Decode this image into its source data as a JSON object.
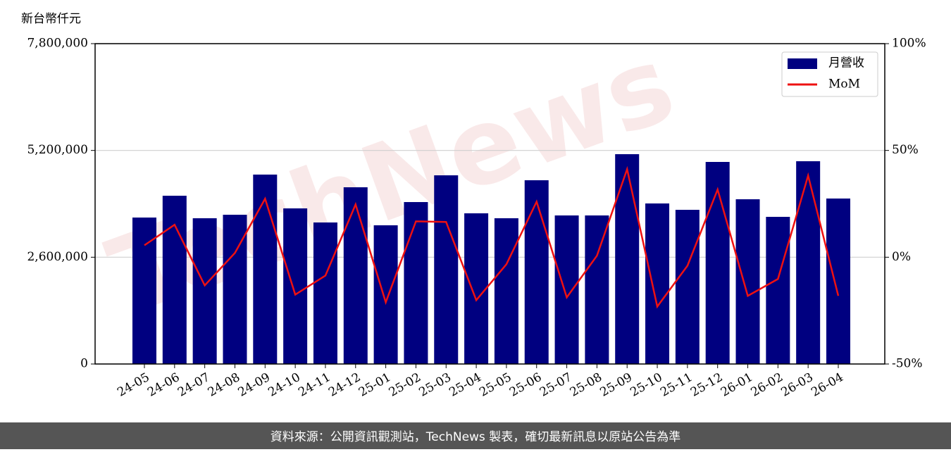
{
  "chart_data": {
    "type": "bar_line",
    "y_label": "新台幣仟元",
    "watermark": "TechNews",
    "footer": "資料來源：公開資訊觀測站，TechNews 製表，確切最新訊息以原站公告為準",
    "categories": [
      "24-05",
      "24-06",
      "24-07",
      "24-08",
      "24-09",
      "24-10",
      "24-11",
      "24-12",
      "25-01",
      "25-02",
      "25-03",
      "25-04",
      "25-05",
      "25-06",
      "25-07",
      "25-08",
      "25-09",
      "25-10",
      "25-11",
      "25-12",
      "26-01",
      "26-02",
      "26-03",
      "26-04"
    ],
    "series": [
      {
        "name": "月營收",
        "type": "bar",
        "color": "#000080",
        "values": [
          3566000,
          4097000,
          3549000,
          3634000,
          4612000,
          3789000,
          3446000,
          4303000,
          3377000,
          3943000,
          4594000,
          3669000,
          3549000,
          4474000,
          3617000,
          3617000,
          5109000,
          3909000,
          3754000,
          4920000,
          4011000,
          3583000,
          4937000,
          4029000
        ]
      },
      {
        "name": "MoM",
        "type": "line",
        "axis": "y2",
        "color": "#ee1111",
        "values": [
          5.6,
          15.2,
          -13.2,
          2.0,
          27.4,
          -17.5,
          -8.6,
          24.7,
          -21.1,
          16.8,
          16.5,
          -20.1,
          -3.3,
          26.0,
          -18.8,
          0.7,
          41.2,
          -23.1,
          -4.0,
          31.7,
          -18.1,
          -10.2,
          38.2,
          -18.1
        ]
      }
    ],
    "ylim": [
      0,
      7800000
    ],
    "yticks": [
      0,
      {
        "value": 2600000,
        "label": "2,600,000"
      },
      {
        "value": 5200000,
        "label": "5,200,000"
      },
      {
        "value": 7800000,
        "label": "7,800,000"
      }
    ],
    "y2lim": [
      -50,
      100
    ],
    "y2ticks": [
      {
        "value": -50,
        "label": "-50%"
      },
      {
        "value": 0,
        "label": "0%"
      },
      {
        "value": 50,
        "label": "50%"
      },
      {
        "value": 100,
        "label": "100%"
      }
    ],
    "grid": true,
    "legend": "upper right"
  }
}
